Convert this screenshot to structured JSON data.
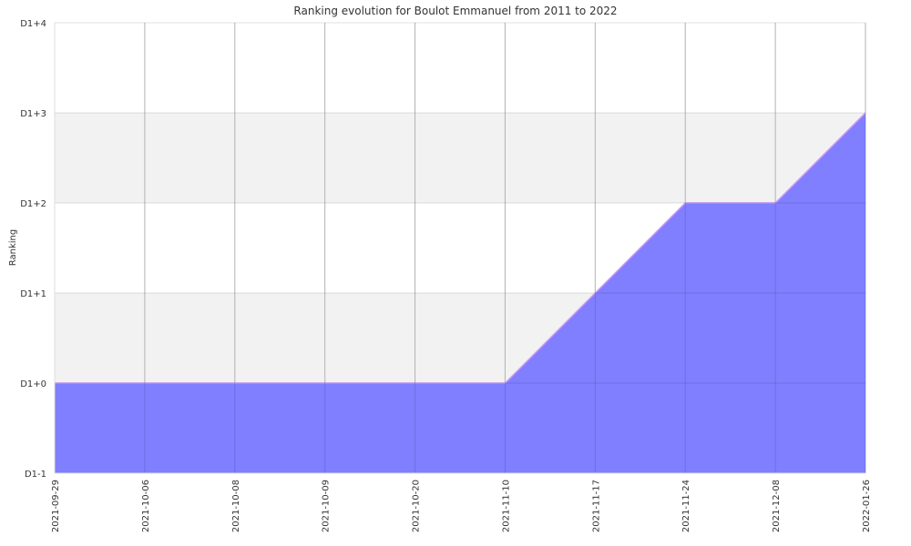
{
  "chart_data": {
    "type": "area",
    "title": "Ranking evolution for Boulot Emmanuel from 2011 to 2022",
    "xlabel": "",
    "ylabel": "Ranking",
    "x": [
      "2021-09-29",
      "2021-10-06",
      "2021-10-08",
      "2021-10-09",
      "2021-10-20",
      "2021-11-10",
      "2021-11-17",
      "2021-11-24",
      "2021-12-08",
      "2022-01-26"
    ],
    "y_tick_labels": [
      "D1-1",
      "D1+0",
      "D1+1",
      "D1+2",
      "D1+3",
      "D1+4"
    ],
    "y_tick_values": [
      -1,
      0,
      1,
      2,
      3,
      4
    ],
    "ylim": [
      -1,
      4
    ],
    "series": [
      {
        "values": [
          0,
          0,
          0,
          0,
          0,
          0,
          1,
          2,
          2,
          3
        ]
      }
    ],
    "grid": true,
    "colors": {
      "fill": "#7f7fff",
      "stroke": "#cc99ff",
      "band": "#f2f2f2",
      "grid": "#cccccc",
      "axis": "#dddddd"
    }
  }
}
